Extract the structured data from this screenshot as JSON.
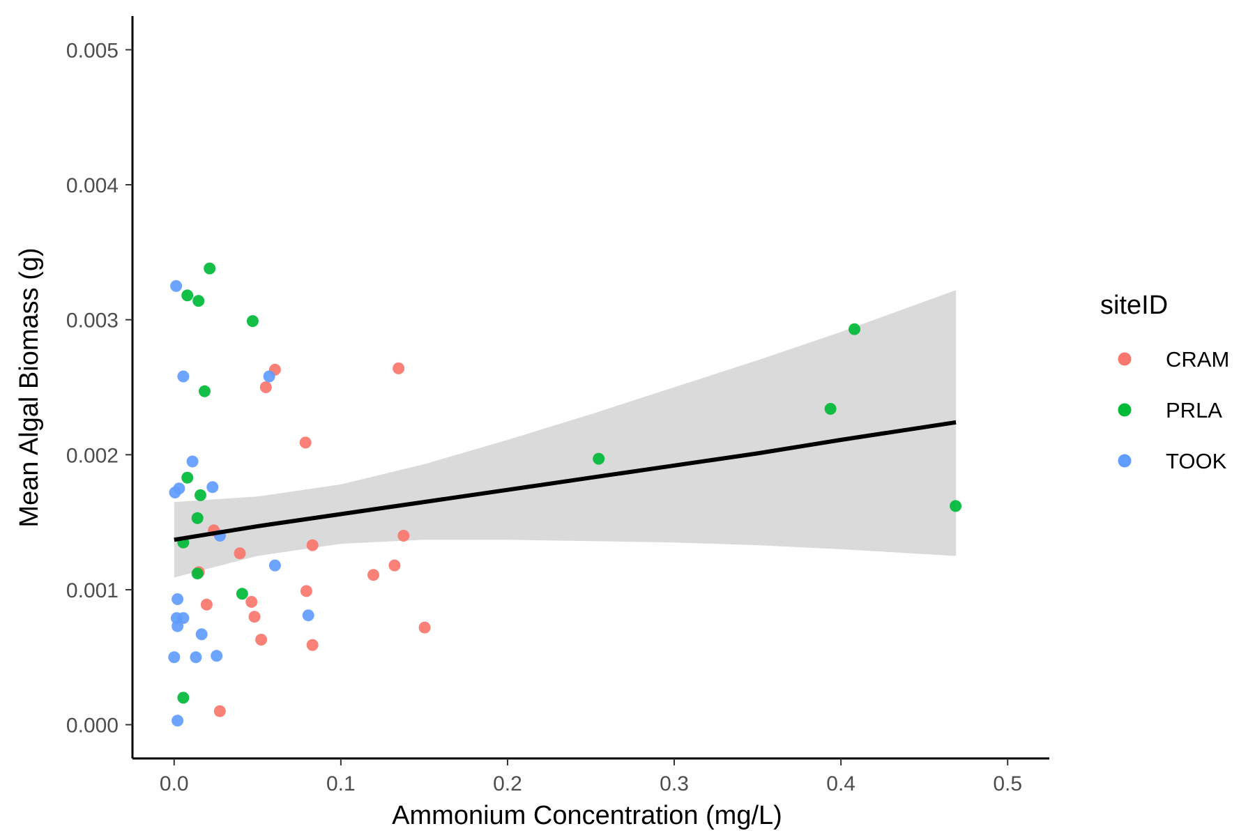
{
  "chart_data": {
    "type": "scatter",
    "xlabel": "Ammonium Concentration (mg/L)",
    "ylabel": "Mean Algal Biomass (g)",
    "xlim": [
      -0.025,
      0.525
    ],
    "ylim": [
      -0.00025,
      0.00525
    ],
    "x_ticks": [
      "0.0",
      "0.1",
      "0.2",
      "0.3",
      "0.4",
      "0.5"
    ],
    "x_tick_values": [
      0.0,
      0.1,
      0.2,
      0.3,
      0.4,
      0.5
    ],
    "y_ticks": [
      "0.000",
      "0.001",
      "0.002",
      "0.003",
      "0.004",
      "0.005"
    ],
    "y_tick_values": [
      0.0,
      0.001,
      0.002,
      0.003,
      0.004,
      0.005
    ],
    "grid": false,
    "legend": {
      "title": "siteID",
      "placement": "right"
    },
    "series": [
      {
        "name": "CRAM",
        "color": "#F8766D",
        "points": [
          [
            0.0238,
            0.00144
          ],
          [
            0.0148,
            0.00113
          ],
          [
            0.0195,
            0.00089
          ],
          [
            0.0394,
            0.00127
          ],
          [
            0.0464,
            0.00091
          ],
          [
            0.0482,
            0.0008
          ],
          [
            0.0522,
            0.00063
          ],
          [
            0.0274,
            0.0001
          ],
          [
            0.055,
            0.0025
          ],
          [
            0.0605,
            0.00263
          ],
          [
            0.0788,
            0.00209
          ],
          [
            0.0793,
            0.00099
          ],
          [
            0.083,
            0.00133
          ],
          [
            0.083,
            0.00059
          ],
          [
            0.1195,
            0.00111
          ],
          [
            0.1322,
            0.00118
          ],
          [
            0.1346,
            0.00264
          ],
          [
            0.1376,
            0.0014
          ],
          [
            0.1503,
            0.00072
          ]
        ]
      },
      {
        "name": "PRLA",
        "color": "#00BA38",
        "points": [
          [
            0.0213,
            0.00338
          ],
          [
            0.0079,
            0.00318
          ],
          [
            0.0146,
            0.00314
          ],
          [
            0.0471,
            0.00299
          ],
          [
            0.0183,
            0.00247
          ],
          [
            0.0079,
            0.00183
          ],
          [
            0.0158,
            0.0017
          ],
          [
            0.014,
            0.00153
          ],
          [
            0.0055,
            0.00135
          ],
          [
            0.014,
            0.00112
          ],
          [
            0.0408,
            0.00097
          ],
          [
            0.0055,
            0.0002
          ],
          [
            0.2547,
            0.00197
          ],
          [
            0.3937,
            0.00234
          ],
          [
            0.4081,
            0.00293
          ],
          [
            0.4688,
            0.00162
          ]
        ]
      },
      {
        "name": "TOOK",
        "color": "#619CFF",
        "points": [
          [
            0.0012,
            0.00325
          ],
          [
            0.0055,
            0.00258
          ],
          [
            0.011,
            0.00195
          ],
          [
            0.023,
            0.00176
          ],
          [
            0.003,
            0.00175
          ],
          [
            0.0005,
            0.00172
          ],
          [
            0.0275,
            0.0014
          ],
          [
            0.0605,
            0.00118
          ],
          [
            0.002,
            0.00093
          ],
          [
            0.0015,
            0.00079
          ],
          [
            0.0055,
            0.00079
          ],
          [
            0.002,
            0.00073
          ],
          [
            0.0165,
            0.00067
          ],
          [
            0.0805,
            0.00081
          ],
          [
            0.0,
            0.0005
          ],
          [
            0.013,
            0.0005
          ],
          [
            0.0255,
            0.00051
          ],
          [
            0.002,
            3e-05
          ],
          [
            0.057,
            0.00258
          ]
        ]
      }
    ],
    "trend": {
      "color": "#000000",
      "band_color": "#d6d6d6",
      "x": [
        0.0,
        0.05,
        0.1,
        0.15,
        0.2,
        0.25,
        0.3,
        0.35,
        0.4,
        0.469
      ],
      "fit": [
        0.00137,
        0.00147,
        0.00156,
        0.00165,
        0.00174,
        0.00183,
        0.00192,
        0.00201,
        0.00211,
        0.00224
      ],
      "lower": [
        0.00109,
        0.00125,
        0.00134,
        0.00137,
        0.00137,
        0.00136,
        0.00135,
        0.00133,
        0.0013,
        0.00125
      ],
      "upper": [
        0.00165,
        0.00169,
        0.00178,
        0.00193,
        0.00211,
        0.0023,
        0.0025,
        0.0027,
        0.00291,
        0.00322
      ]
    }
  }
}
